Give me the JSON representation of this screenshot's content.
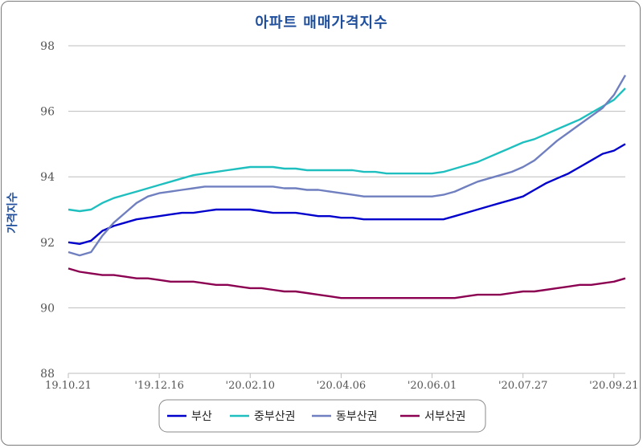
{
  "chart_data": {
    "type": "line",
    "title": "아파트 매매가격지수",
    "ylabel": "가격지수",
    "xlabel": "",
    "ylim": [
      88,
      98
    ],
    "yticks": [
      88,
      90,
      92,
      94,
      96,
      98
    ],
    "grid": "horizontal",
    "legend_position": "bottom",
    "x_ticks": [
      "19.10.21",
      "'19.12.16",
      "'20.02.10",
      "'20.04.06",
      "'20.06.01",
      "'20.07.27",
      "'20.09.21"
    ],
    "x_tick_index": [
      0,
      8,
      16,
      24,
      32,
      40,
      48
    ],
    "n_points": 50,
    "series": [
      {
        "name": "부산",
        "color": "#0000cc",
        "values": [
          92.0,
          91.95,
          92.05,
          92.35,
          92.5,
          92.6,
          92.7,
          92.75,
          92.8,
          92.85,
          92.9,
          92.9,
          92.95,
          93.0,
          93.0,
          93.0,
          93.0,
          92.95,
          92.9,
          92.9,
          92.9,
          92.85,
          92.8,
          92.8,
          92.75,
          92.75,
          92.7,
          92.7,
          92.7,
          92.7,
          92.7,
          92.7,
          92.7,
          92.7,
          92.8,
          92.9,
          93.0,
          93.1,
          93.2,
          93.3,
          93.4,
          93.6,
          93.8,
          93.95,
          94.1,
          94.3,
          94.5,
          94.7,
          94.8,
          95.0
        ]
      },
      {
        "name": "중부산권",
        "color": "#1fbfbf",
        "values": [
          93.0,
          92.95,
          93.0,
          93.2,
          93.35,
          93.45,
          93.55,
          93.65,
          93.75,
          93.85,
          93.95,
          94.05,
          94.1,
          94.15,
          94.2,
          94.25,
          94.3,
          94.3,
          94.3,
          94.25,
          94.25,
          94.2,
          94.2,
          94.2,
          94.2,
          94.2,
          94.15,
          94.15,
          94.1,
          94.1,
          94.1,
          94.1,
          94.1,
          94.15,
          94.25,
          94.35,
          94.45,
          94.6,
          94.75,
          94.9,
          95.05,
          95.15,
          95.3,
          95.45,
          95.6,
          95.75,
          95.95,
          96.15,
          96.35,
          96.7
        ]
      },
      {
        "name": "동부산권",
        "color": "#6f7fbf",
        "values": [
          91.7,
          91.6,
          91.7,
          92.2,
          92.6,
          92.9,
          93.2,
          93.4,
          93.5,
          93.55,
          93.6,
          93.65,
          93.7,
          93.7,
          93.7,
          93.7,
          93.7,
          93.7,
          93.7,
          93.65,
          93.65,
          93.6,
          93.6,
          93.55,
          93.5,
          93.45,
          93.4,
          93.4,
          93.4,
          93.4,
          93.4,
          93.4,
          93.4,
          93.45,
          93.55,
          93.7,
          93.85,
          93.95,
          94.05,
          94.15,
          94.3,
          94.5,
          94.8,
          95.1,
          95.35,
          95.6,
          95.85,
          96.1,
          96.5,
          97.1
        ]
      },
      {
        "name": "서부산권",
        "color": "#8b0050",
        "values": [
          91.2,
          91.1,
          91.05,
          91.0,
          91.0,
          90.95,
          90.9,
          90.9,
          90.85,
          90.8,
          90.8,
          90.8,
          90.75,
          90.7,
          90.7,
          90.65,
          90.6,
          90.6,
          90.55,
          90.5,
          90.5,
          90.45,
          90.4,
          90.35,
          90.3,
          90.3,
          90.3,
          90.3,
          90.3,
          90.3,
          90.3,
          90.3,
          90.3,
          90.3,
          90.3,
          90.35,
          90.4,
          90.4,
          90.4,
          90.45,
          90.5,
          90.5,
          90.55,
          90.6,
          90.65,
          90.7,
          90.7,
          90.75,
          90.8,
          90.9
        ]
      }
    ]
  }
}
